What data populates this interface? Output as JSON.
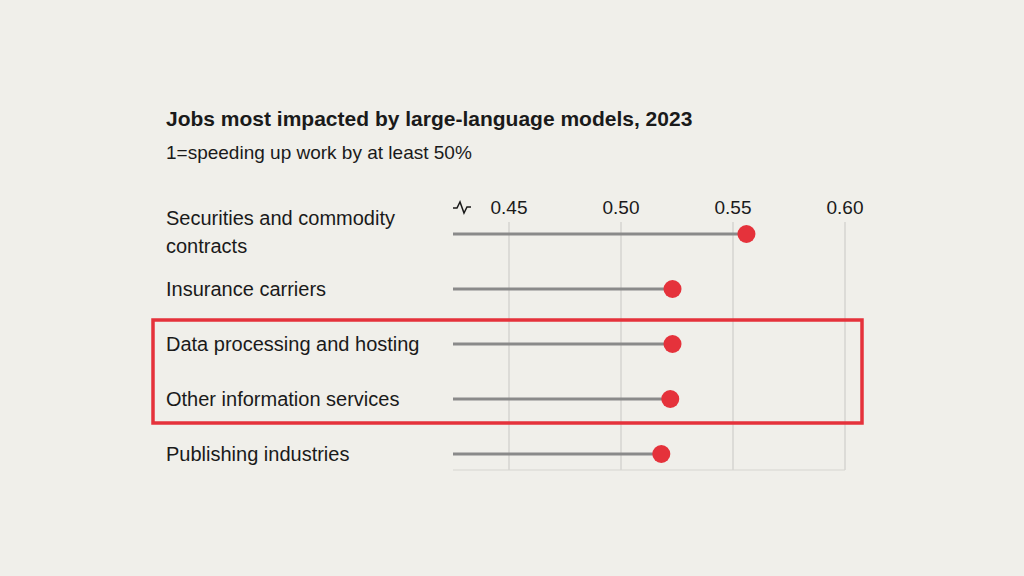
{
  "chart_data": {
    "type": "lollipop",
    "orientation": "horizontal",
    "title": "Jobs most impacted by large-language models, 2023",
    "subtitle": "1=speeding up work by at least 50%",
    "categories": [
      "Securities and commodity contracts",
      "Insurance carriers",
      "Data processing and hosting",
      "Other information services",
      "Publishing industries"
    ],
    "values": [
      0.556,
      0.523,
      0.523,
      0.522,
      0.518
    ],
    "color": "#e5323b",
    "xlim": [
      0.425,
      0.6
    ],
    "xticks": [
      0.45,
      {
        "value": 0.5,
        "label": "0.50"
      },
      0.55,
      {
        "value": 0.6,
        "label": "0.60"
      }
    ],
    "grid": true,
    "data_labels": false
  }
}
